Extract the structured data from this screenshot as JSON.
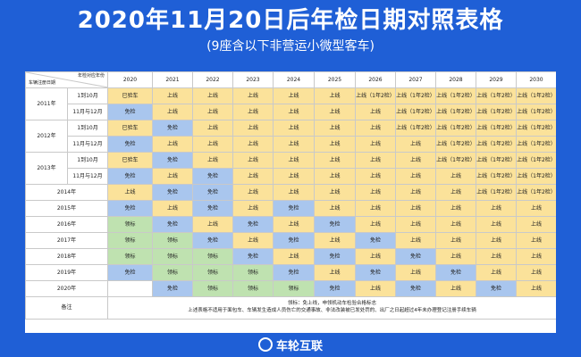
{
  "title": "2020年11月20日后年检日期对照表格",
  "subtitle": "(9座含以下非营运小微型客车)",
  "corner": {
    "top": "年检对应年份",
    "bottom": "车辆注册日期"
  },
  "years": [
    "2020",
    "2021",
    "2022",
    "2023",
    "2024",
    "2025",
    "2026",
    "2027",
    "2028",
    "2029",
    "2030"
  ],
  "groups": [
    {
      "label": "2011年",
      "rows": [
        {
          "sub": "1到10月",
          "cells": [
            {
              "t": "已验车",
              "c": "y"
            },
            {
              "t": "上线",
              "c": "y"
            },
            {
              "t": "上线",
              "c": "y"
            },
            {
              "t": "上线",
              "c": "y"
            },
            {
              "t": "上线",
              "c": "y"
            },
            {
              "t": "上线",
              "c": "y"
            },
            {
              "t": "上线（1年2检）",
              "c": "y"
            },
            {
              "t": "上线（1年2检）",
              "c": "y"
            },
            {
              "t": "上线（1年2检）",
              "c": "y"
            },
            {
              "t": "上线（1年2检）",
              "c": "y"
            },
            {
              "t": "上线（1年2检）",
              "c": "y"
            }
          ]
        },
        {
          "sub": "11月与12月",
          "cells": [
            {
              "t": "免检",
              "c": "b"
            },
            {
              "t": "上线",
              "c": "y"
            },
            {
              "t": "上线",
              "c": "y"
            },
            {
              "t": "上线",
              "c": "y"
            },
            {
              "t": "上线",
              "c": "y"
            },
            {
              "t": "上线",
              "c": "y"
            },
            {
              "t": "上线",
              "c": "y"
            },
            {
              "t": "上线（1年2检）",
              "c": "y"
            },
            {
              "t": "上线（1年2检）",
              "c": "y"
            },
            {
              "t": "上线（1年2检）",
              "c": "y"
            },
            {
              "t": "上线（1年2检）",
              "c": "y"
            }
          ]
        }
      ]
    },
    {
      "label": "2012年",
      "rows": [
        {
          "sub": "1到10月",
          "cells": [
            {
              "t": "已验车",
              "c": "y"
            },
            {
              "t": "免检",
              "c": "b"
            },
            {
              "t": "上线",
              "c": "y"
            },
            {
              "t": "上线",
              "c": "y"
            },
            {
              "t": "上线",
              "c": "y"
            },
            {
              "t": "上线",
              "c": "y"
            },
            {
              "t": "上线",
              "c": "y"
            },
            {
              "t": "上线（1年2检）",
              "c": "y"
            },
            {
              "t": "上线（1年2检）",
              "c": "y"
            },
            {
              "t": "上线（1年2检）",
              "c": "y"
            },
            {
              "t": "上线（1年2检）",
              "c": "y"
            }
          ]
        },
        {
          "sub": "11月与12月",
          "cells": [
            {
              "t": "免检",
              "c": "b"
            },
            {
              "t": "上线",
              "c": "y"
            },
            {
              "t": "上线",
              "c": "y"
            },
            {
              "t": "上线",
              "c": "y"
            },
            {
              "t": "上线",
              "c": "y"
            },
            {
              "t": "上线",
              "c": "y"
            },
            {
              "t": "上线",
              "c": "y"
            },
            {
              "t": "上线",
              "c": "y"
            },
            {
              "t": "上线（1年2检）",
              "c": "y"
            },
            {
              "t": "上线（1年2检）",
              "c": "y"
            },
            {
              "t": "上线（1年2检）",
              "c": "y"
            }
          ]
        }
      ]
    },
    {
      "label": "2013年",
      "rows": [
        {
          "sub": "1到10月",
          "cells": [
            {
              "t": "已验车",
              "c": "y"
            },
            {
              "t": "免检",
              "c": "b"
            },
            {
              "t": "上线",
              "c": "y"
            },
            {
              "t": "上线",
              "c": "y"
            },
            {
              "t": "上线",
              "c": "y"
            },
            {
              "t": "上线",
              "c": "y"
            },
            {
              "t": "上线",
              "c": "y"
            },
            {
              "t": "上线",
              "c": "y"
            },
            {
              "t": "上线（1年2检）",
              "c": "y"
            },
            {
              "t": "上线（1年2检）",
              "c": "y"
            },
            {
              "t": "上线（1年2检）",
              "c": "y"
            }
          ]
        },
        {
          "sub": "11月与12月",
          "cells": [
            {
              "t": "免检",
              "c": "b"
            },
            {
              "t": "上线",
              "c": "y"
            },
            {
              "t": "免检",
              "c": "b"
            },
            {
              "t": "上线",
              "c": "y"
            },
            {
              "t": "上线",
              "c": "y"
            },
            {
              "t": "上线",
              "c": "y"
            },
            {
              "t": "上线",
              "c": "y"
            },
            {
              "t": "上线",
              "c": "y"
            },
            {
              "t": "上线",
              "c": "y"
            },
            {
              "t": "上线（1年2检）",
              "c": "y"
            },
            {
              "t": "上线（1年2检）",
              "c": "y"
            }
          ]
        }
      ]
    }
  ],
  "yearRows": [
    {
      "label": "2014年",
      "cells": [
        {
          "t": "上线",
          "c": "y"
        },
        {
          "t": "免检",
          "c": "b"
        },
        {
          "t": "免检",
          "c": "b"
        },
        {
          "t": "上线",
          "c": "y"
        },
        {
          "t": "上线",
          "c": "y"
        },
        {
          "t": "上线",
          "c": "y"
        },
        {
          "t": "上线",
          "c": "y"
        },
        {
          "t": "上线",
          "c": "y"
        },
        {
          "t": "上线",
          "c": "y"
        },
        {
          "t": "上线（1年2检）",
          "c": "y"
        },
        {
          "t": "上线（1年2检）",
          "c": "y"
        }
      ]
    },
    {
      "label": "2015年",
      "cells": [
        {
          "t": "免检",
          "c": "b"
        },
        {
          "t": "上线",
          "c": "y"
        },
        {
          "t": "免检",
          "c": "b"
        },
        {
          "t": "上线",
          "c": "y"
        },
        {
          "t": "免检",
          "c": "b"
        },
        {
          "t": "上线",
          "c": "y"
        },
        {
          "t": "上线",
          "c": "y"
        },
        {
          "t": "上线",
          "c": "y"
        },
        {
          "t": "上线",
          "c": "y"
        },
        {
          "t": "上线",
          "c": "y"
        },
        {
          "t": "上线",
          "c": "y"
        }
      ]
    },
    {
      "label": "2016年",
      "cells": [
        {
          "t": "领标",
          "c": "g"
        },
        {
          "t": "免检",
          "c": "b"
        },
        {
          "t": "上线",
          "c": "y"
        },
        {
          "t": "免检",
          "c": "b"
        },
        {
          "t": "上线",
          "c": "y"
        },
        {
          "t": "免检",
          "c": "b"
        },
        {
          "t": "上线",
          "c": "y"
        },
        {
          "t": "上线",
          "c": "y"
        },
        {
          "t": "上线",
          "c": "y"
        },
        {
          "t": "上线",
          "c": "y"
        },
        {
          "t": "上线",
          "c": "y"
        }
      ]
    },
    {
      "label": "2017年",
      "cells": [
        {
          "t": "领标",
          "c": "g"
        },
        {
          "t": "领标",
          "c": "g"
        },
        {
          "t": "免检",
          "c": "b"
        },
        {
          "t": "上线",
          "c": "y"
        },
        {
          "t": "免检",
          "c": "b"
        },
        {
          "t": "上线",
          "c": "y"
        },
        {
          "t": "免检",
          "c": "b"
        },
        {
          "t": "上线",
          "c": "y"
        },
        {
          "t": "上线",
          "c": "y"
        },
        {
          "t": "上线",
          "c": "y"
        },
        {
          "t": "上线",
          "c": "y"
        }
      ]
    },
    {
      "label": "2018年",
      "cells": [
        {
          "t": "领标",
          "c": "g"
        },
        {
          "t": "领标",
          "c": "g"
        },
        {
          "t": "领标",
          "c": "g"
        },
        {
          "t": "免检",
          "c": "b"
        },
        {
          "t": "上线",
          "c": "y"
        },
        {
          "t": "免检",
          "c": "b"
        },
        {
          "t": "上线",
          "c": "y"
        },
        {
          "t": "免检",
          "c": "b"
        },
        {
          "t": "上线",
          "c": "y"
        },
        {
          "t": "上线",
          "c": "y"
        },
        {
          "t": "上线",
          "c": "y"
        }
      ]
    },
    {
      "label": "2019年",
      "cells": [
        {
          "t": "免检",
          "c": "b"
        },
        {
          "t": "领标",
          "c": "g"
        },
        {
          "t": "领标",
          "c": "g"
        },
        {
          "t": "领标",
          "c": "g"
        },
        {
          "t": "免检",
          "c": "b"
        },
        {
          "t": "上线",
          "c": "y"
        },
        {
          "t": "免检",
          "c": "b"
        },
        {
          "t": "上线",
          "c": "y"
        },
        {
          "t": "免检",
          "c": "b"
        },
        {
          "t": "上线",
          "c": "y"
        },
        {
          "t": "上线",
          "c": "y"
        }
      ]
    },
    {
      "label": "2020年",
      "cells": [
        {
          "t": "",
          "c": "w"
        },
        {
          "t": "免检",
          "c": "b"
        },
        {
          "t": "领标",
          "c": "g"
        },
        {
          "t": "领标",
          "c": "g"
        },
        {
          "t": "领标",
          "c": "g"
        },
        {
          "t": "免检",
          "c": "b"
        },
        {
          "t": "上线",
          "c": "y"
        },
        {
          "t": "免检",
          "c": "b"
        },
        {
          "t": "上线",
          "c": "y"
        },
        {
          "t": "免检",
          "c": "b"
        },
        {
          "t": "上线",
          "c": "y"
        }
      ]
    }
  ],
  "remarks": {
    "label": "备注",
    "line1": "领标：免上线，申领机动车检验合格标志",
    "line2": "上述表格不适用于面包车、车辆发生造成人员伤亡的交通事故、非法改装被已发处罚的、出厂之日起超过4年未办理登记注册手续车辆"
  },
  "footer": {
    "brand": "车轮互联"
  },
  "colors": {
    "background": "#1f5fd6",
    "online": "#fbe29a",
    "exempt": "#a9c6ee",
    "label": "#bfe2b0"
  }
}
